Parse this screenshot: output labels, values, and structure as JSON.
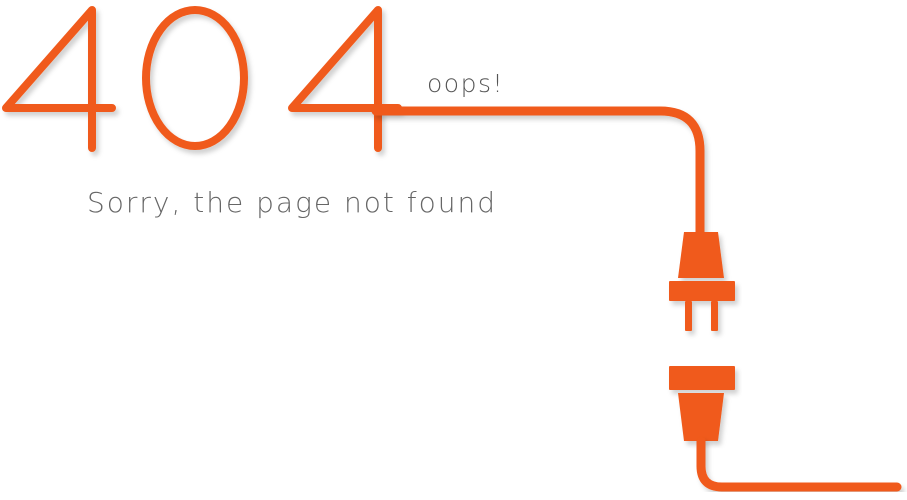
{
  "error": {
    "code_digits": [
      "4",
      "0",
      "4"
    ],
    "exclamation": "oops!",
    "message": "Sorry, the page not found"
  },
  "illustration": {
    "subject": "unplugged-power-cable",
    "icon": "plug-icon"
  },
  "colors": {
    "accent": "#f05a1a",
    "text": "#666666",
    "background": "#ffffff"
  }
}
